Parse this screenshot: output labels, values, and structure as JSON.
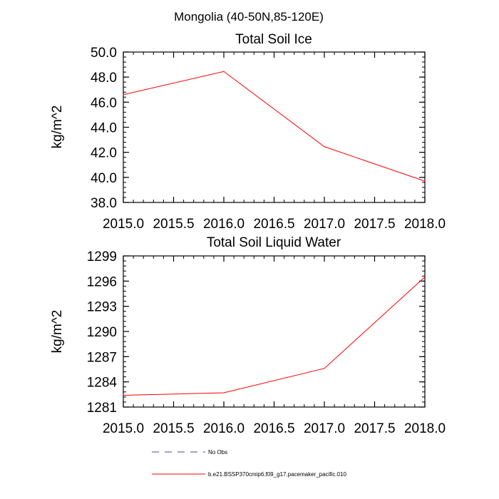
{
  "figure_title": "Mongolia (40-50N,85-120E)",
  "chart_data": [
    {
      "type": "line",
      "title": "Total Soil Ice",
      "xlabel": "",
      "ylabel": "kg/m^2",
      "xlim": [
        2015.0,
        2018.0
      ],
      "ylim": [
        38.0,
        50.0
      ],
      "xticks": [
        "2015.0",
        "2015.5",
        "2016.0",
        "2016.5",
        "2017.0",
        "2017.5",
        "2018.0"
      ],
      "yticks": [
        "38.0",
        "40.0",
        "42.0",
        "44.0",
        "46.0",
        "48.0",
        "50.0"
      ],
      "series": [
        {
          "name": "b.e21.BSSP370cmip6.f09_g17.pacemaker_pacific.010",
          "color": "#ff0000",
          "x": [
            2015.0,
            2016.0,
            2017.0,
            2018.0
          ],
          "values": [
            46.6,
            48.45,
            42.45,
            39.7
          ]
        }
      ]
    },
    {
      "type": "line",
      "title": "Total Soil Liquid Water",
      "xlabel": "",
      "ylabel": "kg/m^2",
      "xlim": [
        2015.0,
        2018.0
      ],
      "ylim": [
        1281,
        1299
      ],
      "xticks": [
        "2015.0",
        "2015.5",
        "2016.0",
        "2016.5",
        "2017.0",
        "2017.5",
        "2018.0"
      ],
      "yticks": [
        "1281",
        "1284",
        "1287",
        "1290",
        "1293",
        "1296",
        "1299"
      ],
      "series": [
        {
          "name": "b.e21.BSSP370cmip6.f09_g17.pacemaker_pacific.010",
          "color": "#ff0000",
          "x": [
            2015.0,
            2016.0,
            2017.0,
            2018.0
          ],
          "values": [
            1282.4,
            1282.7,
            1285.6,
            1296.5
          ]
        }
      ]
    }
  ],
  "legend": {
    "items": [
      {
        "label": "No Obs",
        "style": "dashed",
        "color": "#4444aa"
      },
      {
        "label": "b.e21.BSSP370cmip6.f09_g17.pacemaker_pacific.010",
        "style": "solid",
        "color": "#ff0000"
      }
    ]
  }
}
